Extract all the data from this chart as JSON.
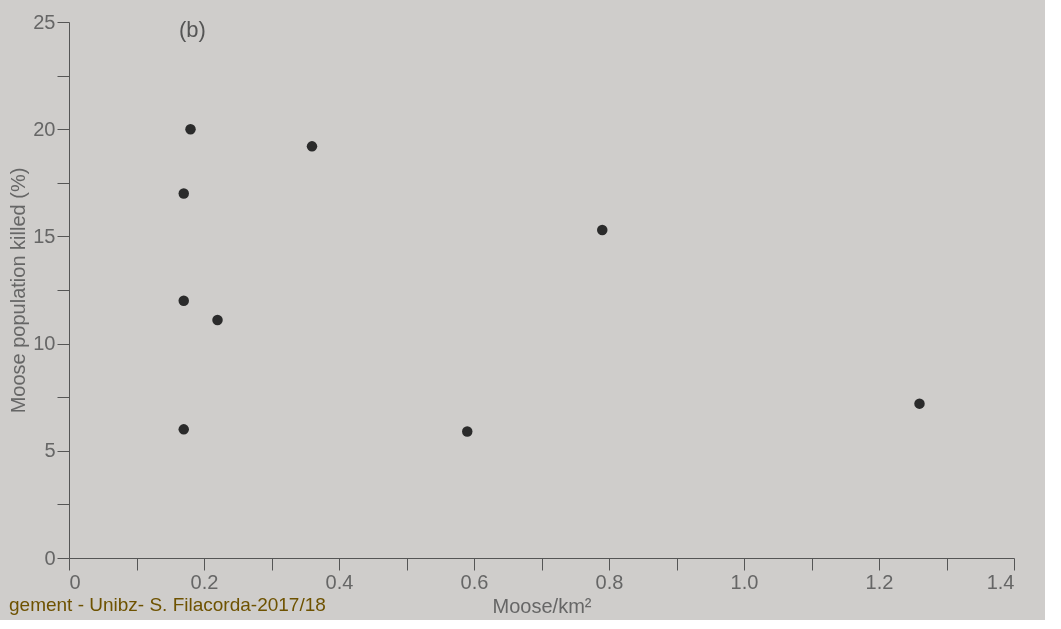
{
  "chart_data": {
    "type": "scatter",
    "xlabel": "Moose/km²",
    "ylabel": "Moose population killed (%)",
    "x": [
      0.17,
      0.18,
      0.17,
      0.17,
      0.22,
      0.36,
      0.59,
      0.79,
      1.26
    ],
    "series": [
      {
        "color": "#2b2b2b",
        "values": [
          17.0,
          20.0,
          12.0,
          6.0,
          11.1,
          19.2,
          5.9,
          15.3,
          7.2
        ]
      }
    ],
    "xlim": [
      0,
      1.4
    ],
    "ylim": [
      0,
      25
    ],
    "xticks": [
      0,
      {
        "value": 0.1,
        "label": null
      },
      0.2,
      {
        "value": 0.3,
        "label": null
      },
      0.4,
      {
        "value": 0.5,
        "label": null
      },
      0.6,
      {
        "value": 0.7,
        "label": null
      },
      0.8,
      {
        "value": 0.9,
        "label": null
      },
      {
        "value": 1.0,
        "label": "1.0"
      },
      {
        "value": 1.1,
        "label": null
      },
      1.2,
      {
        "value": 1.3,
        "label": null
      },
      1.4
    ],
    "yticks": [
      0,
      {
        "value": 2.5,
        "label": null
      },
      5,
      {
        "value": 7.5,
        "label": null
      },
      10,
      {
        "value": 12.5,
        "label": null
      },
      15,
      {
        "value": 17.5,
        "label": null
      },
      20,
      {
        "value": 22.5,
        "label": null
      },
      25
    ],
    "marker": "circle",
    "grid": false,
    "annotations": [
      "(b)",
      "gement - Unibz- S. Filacorda-2017/18"
    ]
  }
}
